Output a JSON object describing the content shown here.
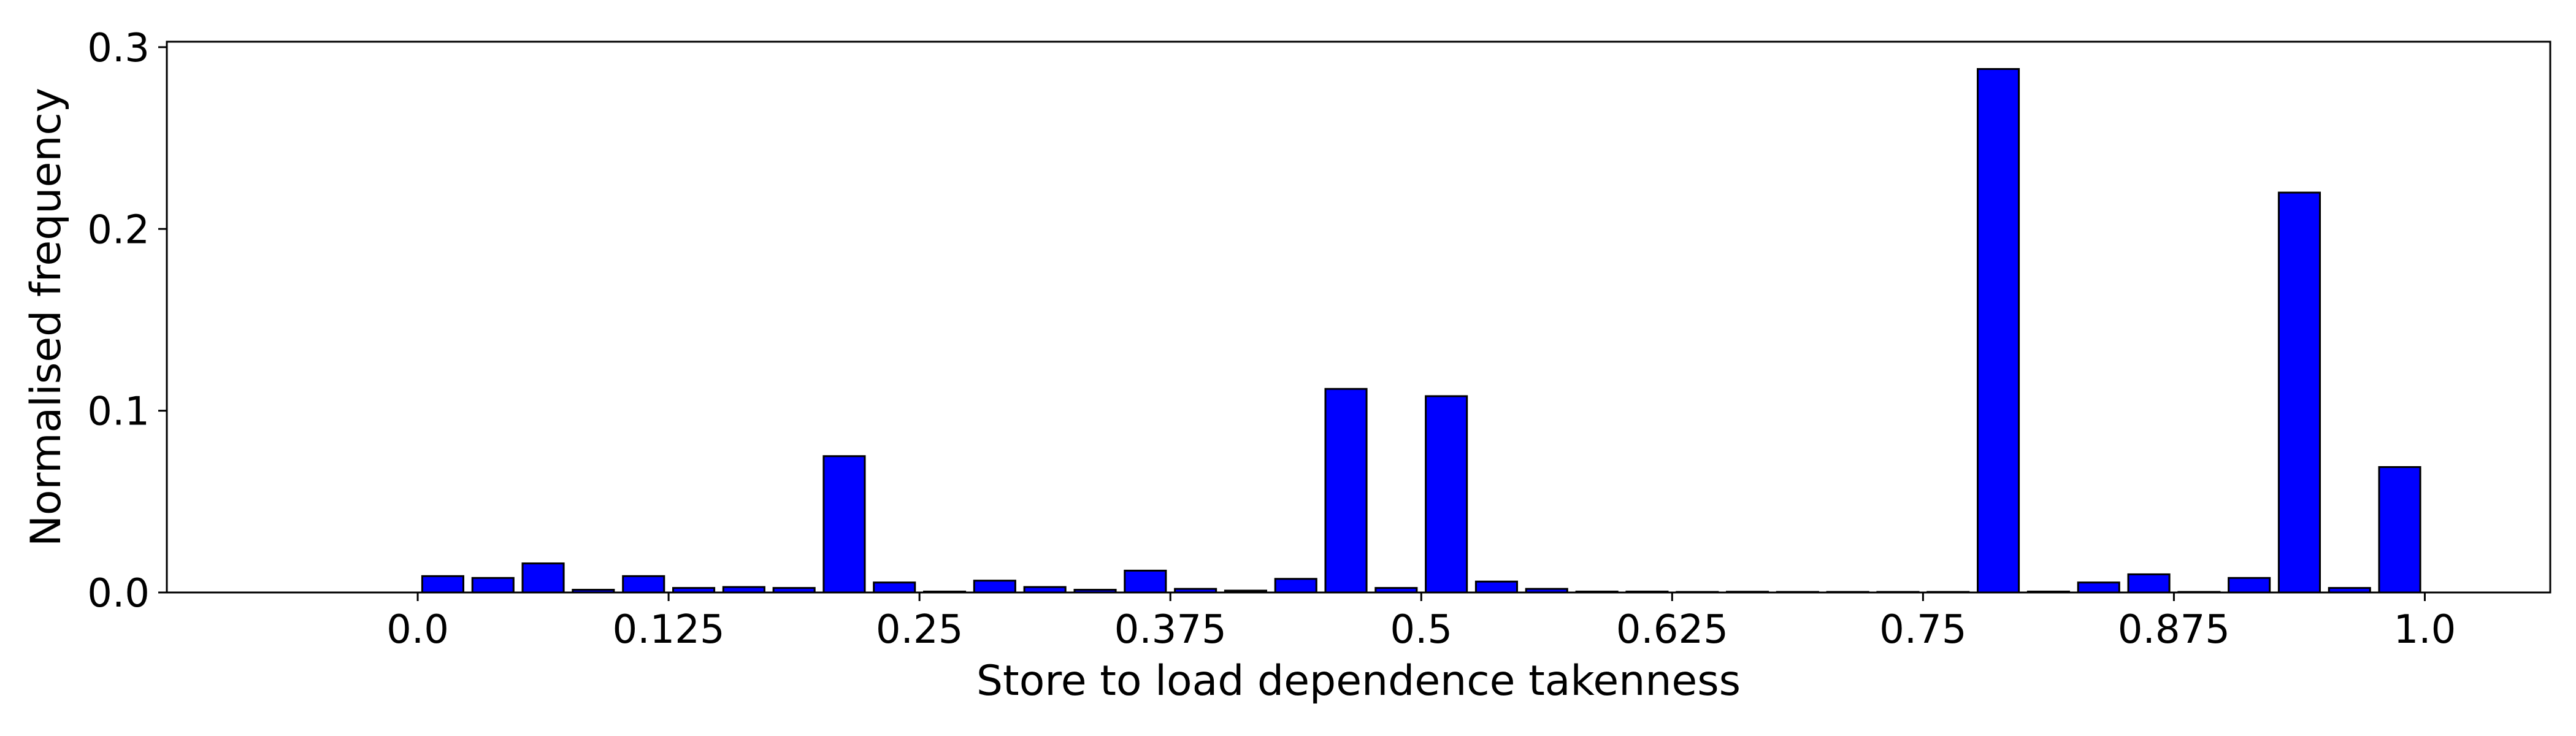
{
  "chart_data": {
    "type": "bar",
    "xlabel": "Store to load dependence takenness",
    "ylabel": "Normalised frequency",
    "xlim": [
      -0.125,
      1.0625
    ],
    "ylim": [
      0,
      0.303
    ],
    "xticks": [
      0.0,
      0.125,
      0.25,
      0.375,
      0.5,
      0.625,
      0.75,
      0.875,
      1.0
    ],
    "xtick_labels": [
      "0.0",
      "0.125",
      "0.25",
      "0.375",
      "0.5",
      "0.625",
      "0.75",
      "0.875",
      "1.0"
    ],
    "yticks": [
      0.0,
      0.1,
      0.2,
      0.3
    ],
    "ytick_labels": [
      "0.0",
      "0.1",
      "0.2",
      "0.3"
    ],
    "bar_width": 0.0205,
    "grid": false,
    "colors": {
      "bar_fill": "#0000ff",
      "bar_edge": "#000000"
    },
    "x": [
      0.0125,
      0.0375,
      0.0625,
      0.0875,
      0.1125,
      0.1375,
      0.1625,
      0.1875,
      0.2125,
      0.2375,
      0.2625,
      0.2875,
      0.3125,
      0.3375,
      0.3625,
      0.3875,
      0.4125,
      0.4375,
      0.4625,
      0.4875,
      0.5125,
      0.5375,
      0.5625,
      0.5875,
      0.6125,
      0.6375,
      0.6625,
      0.6875,
      0.7125,
      0.7375,
      0.7625,
      0.7875,
      0.8125,
      0.8375,
      0.8625,
      0.8875,
      0.9125,
      0.9375,
      0.9625,
      0.9875
    ],
    "values": [
      0.009,
      0.008,
      0.016,
      0.0015,
      0.009,
      0.0025,
      0.003,
      0.0025,
      0.075,
      0.0055,
      0.0005,
      0.0065,
      0.003,
      0.0015,
      0.012,
      0.002,
      0.001,
      0.0075,
      0.112,
      0.0025,
      0.108,
      0.006,
      0.002,
      0.0005,
      0.0005,
      0.0003,
      0.0004,
      0.0003,
      0.0003,
      0.0003,
      0.0003,
      0.288,
      0.0005,
      0.0055,
      0.01,
      0.0003,
      0.008,
      0.22,
      0.0025,
      0.069
    ]
  }
}
